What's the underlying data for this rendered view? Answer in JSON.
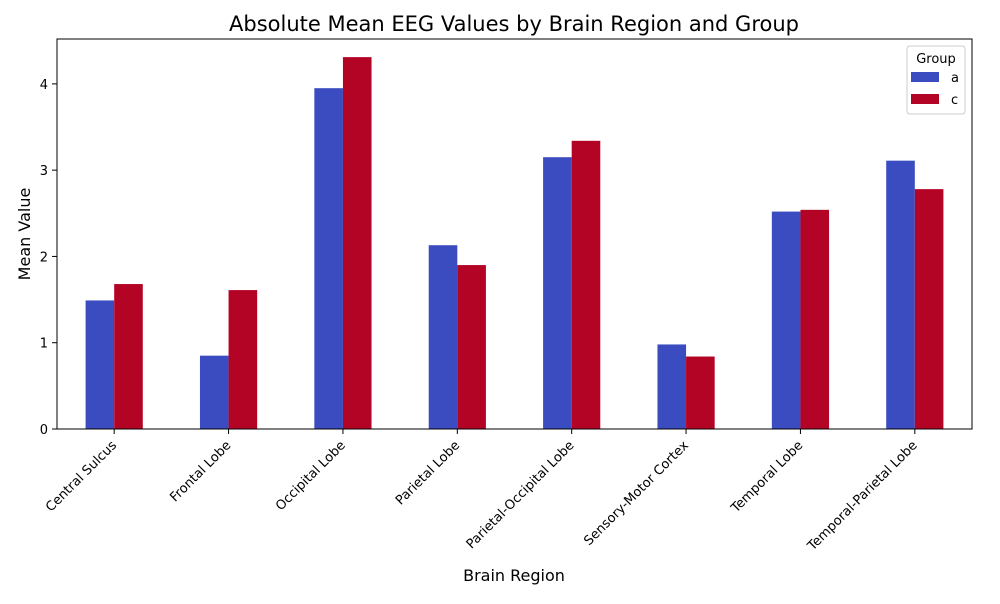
{
  "chart_data": {
    "type": "bar",
    "title": "Absolute Mean EEG Values by Brain Region and Group",
    "xlabel": "Brain Region",
    "ylabel": "Mean Value",
    "categories": [
      "Central Sulcus",
      "Frontal Lobe",
      "Occipital Lobe",
      "Parietal Lobe",
      "Parietal-Occipital Lobe",
      "Sensory-Motor Cortex",
      "Temporal Lobe",
      "Temporal-Parietal Lobe"
    ],
    "series": [
      {
        "name": "a",
        "color": "#3b4cc0",
        "values": [
          1.49,
          0.85,
          3.95,
          2.13,
          3.15,
          0.98,
          2.52,
          3.11
        ]
      },
      {
        "name": "c",
        "color": "#b40426",
        "values": [
          1.68,
          1.61,
          4.31,
          1.9,
          3.34,
          0.84,
          2.54,
          2.78
        ]
      }
    ],
    "ylim": [
      0,
      4.52
    ],
    "yticks": [
      0,
      1,
      2,
      3,
      4
    ],
    "grid": false,
    "legend": {
      "title": "Group",
      "placement": "top-right"
    }
  }
}
